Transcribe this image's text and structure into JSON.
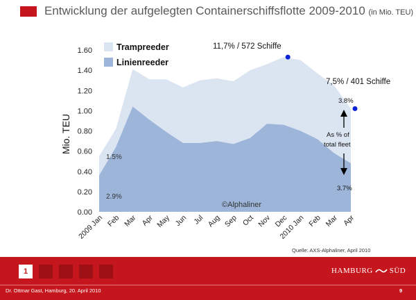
{
  "header": {
    "title": "Entwicklung der aufgelegten Containerschiffsflotte 2009-2010",
    "subtitle": "(in Mio. TEU)"
  },
  "chart_data": {
    "type": "area",
    "stacked": false,
    "x": [
      "2009 Jan",
      "Feb",
      "Mar",
      "Apr",
      "May",
      "Jun",
      "Jul",
      "Aug",
      "Sep",
      "Oct",
      "Nov",
      "Dec",
      "2010 Jan",
      "Feb",
      "Mar",
      "Apr"
    ],
    "ylabel": "Mio. TEU",
    "ylim": [
      0,
      1.6
    ],
    "yticks": [
      "0.00",
      "0.20",
      "0.40",
      "0.60",
      "0.80",
      "1.00",
      "1.20",
      "1.40",
      "1.60"
    ],
    "grid": false,
    "legend_position": "top-left",
    "series": [
      {
        "name": "Trampreeder",
        "color": "#dbe4f1",
        "values": [
          0.55,
          0.82,
          1.41,
          1.31,
          1.31,
          1.23,
          1.3,
          1.32,
          1.29,
          1.4,
          1.46,
          1.53,
          1.5,
          1.37,
          1.25,
          1.02
        ]
      },
      {
        "name": "Linienreeder",
        "color": "#9cb5d9",
        "values": [
          0.36,
          0.64,
          1.04,
          0.91,
          0.79,
          0.68,
          0.68,
          0.7,
          0.67,
          0.73,
          0.87,
          0.86,
          0.8,
          0.72,
          0.58,
          0.48
        ]
      }
    ],
    "markers": [
      {
        "x": "Dec",
        "y": 1.53,
        "color": "#0b21d6"
      },
      {
        "x": "Apr",
        "y": 1.02,
        "color": "#0b21d6"
      }
    ],
    "annotations": {
      "peak_label": "11,7% / 572 Schiffe",
      "last_label": "7,5% / 401 Schiffe",
      "pct_top_right": "3.8%",
      "pct_bottom_right": "3.7%",
      "pct_top_left": "1.5%",
      "pct_bottom_left": "2.9%",
      "note_line1": "As % of",
      "note_line2": "total fleet",
      "watermark": "©Alphaliner"
    }
  },
  "source": "Quelle: AXS-Alphaliner, April 2010",
  "footer": {
    "pages": [
      "1",
      "",
      "",
      "",
      ""
    ],
    "logo_left": "HAMBURG",
    "logo_right": "SÜD",
    "presenter": "Dr. Ottmar Gast, Hamburg, 20. April 2010",
    "page_number": "9"
  }
}
